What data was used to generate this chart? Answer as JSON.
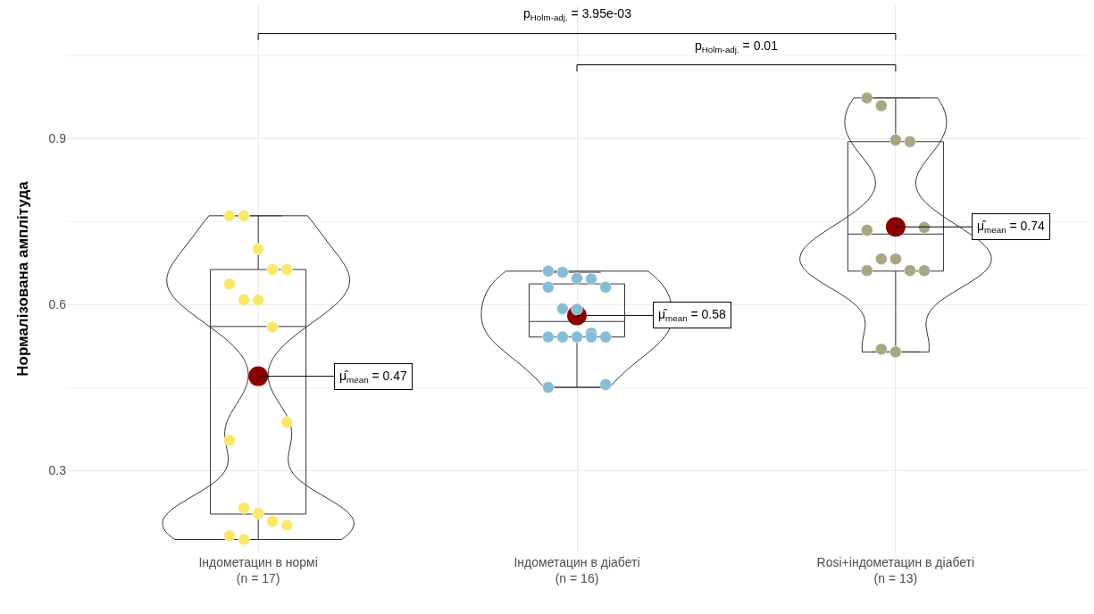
{
  "chart_data": {
    "type": "box",
    "ylabel": "Нормалізована амплітуда",
    "categories": [
      "Індометацин в нормі\n(n = 17)",
      "Індометацин в діабеті\n(n = 16)",
      "Rosi+індометацин в діабеті\n(n = 13)"
    ],
    "boxes": [
      {
        "low": 0.175,
        "q1": 0.221,
        "median": 0.56,
        "q3": 0.663,
        "high": 0.76
      },
      {
        "low": 0.45,
        "q1": 0.541,
        "median": 0.569,
        "q3": 0.637,
        "high": 0.658
      },
      {
        "low": 0.514,
        "q1": 0.66,
        "median": 0.727,
        "q3": 0.894,
        "high": 0.973
      }
    ],
    "series": [
      {
        "type": "scatter",
        "color": "#f9e76a",
        "x": [
          "Індометацин в нормі\n(n = 17)",
          "Індометацин в нормі\n(n = 17)",
          "Індометацин в нормі\n(n = 17)",
          "Індометацин в нормі\n(n = 17)",
          "Індометацин в нормі\n(n = 17)",
          "Індометацин в нормі\n(n = 17)",
          "Індометацин в нормі\n(n = 17)",
          "Індометацин в нормі\n(n = 17)",
          "Індометацин в нормі\n(n = 17)",
          "Індометацин в нормі\n(n = 17)",
          "Індометацин в нормі\n(n = 17)",
          "Індометацин в нормі\n(n = 17)",
          "Індометацин в нормі\n(n = 17)",
          "Індометацин в нормі\n(n = 17)",
          "Індометацин в нормі\n(n = 17)",
          "Індометацин в нормі\n(n = 17)",
          "Індометацин в нормі\n(n = 17)"
        ],
        "values": [
          0.76,
          0.76,
          0.7,
          0.663,
          0.663,
          0.637,
          0.608,
          0.608,
          0.559,
          0.387,
          0.354,
          0.232,
          0.222,
          0.208,
          0.201,
          0.182,
          0.175
        ]
      },
      {
        "type": "scatter",
        "color": "#86bdd4",
        "x": [
          "Індометацин в діабеті\n(n = 16)",
          "Індометацин в діабеті\n(n = 16)",
          "Індометацин в діабеті\n(n = 16)",
          "Індометацин в діабеті\n(n = 16)",
          "Індометацин в діабеті\n(n = 16)",
          "Індометацин в діабеті\n(n = 16)",
          "Індометацин в діабеті\n(n = 16)",
          "Індометацин в діабеті\n(n = 16)",
          "Індометацин в діабеті\n(n = 16)",
          "Індометацин в діабеті\n(n = 16)",
          "Індометацин в діабеті\n(n = 16)",
          "Індометацин в діабеті\n(n = 16)",
          "Індометацин в діабеті\n(n = 16)",
          "Індометацин в діабеті\n(n = 16)",
          "Індометацин в діабеті\n(n = 16)",
          "Індометацин в діабеті\n(n = 16)"
        ],
        "values": [
          0.66,
          0.658,
          0.647,
          0.646,
          0.631,
          0.631,
          0.592,
          0.591,
          0.548,
          0.541,
          0.541,
          0.541,
          0.541,
          0.541,
          0.455,
          0.45
        ]
      },
      {
        "type": "scatter",
        "color": "#a9a683",
        "x": [
          "Rosi+індометацин в діабеті\n(n = 13)",
          "Rosi+індометацин в діабеті\n(n = 13)",
          "Rosi+індометацин в діабеті\n(n = 13)",
          "Rosi+індометацин в діабеті\n(n = 13)",
          "Rosi+індометацин в діабеті\n(n = 13)",
          "Rosi+індометацин в діабеті\n(n = 13)",
          "Rosi+індометацин в діабеті\n(n = 13)",
          "Rosi+індометацин в діабеті\n(n = 13)",
          "Rosi+індометацин в діабеті\n(n = 13)",
          "Rosi+індометацин в діабеті\n(n = 13)",
          "Rosi+індометацин в діабеті\n(n = 13)",
          "Rosi+індометацин в діабеті\n(n = 13)",
          "Rosi+індометацин в діабеті\n(n = 13)"
        ],
        "values": [
          0.973,
          0.959,
          0.897,
          0.894,
          0.739,
          0.734,
          0.682,
          0.682,
          0.661,
          0.661,
          0.661,
          0.519,
          0.514
        ]
      },
      {
        "type": "scatter",
        "color": "#8b0000",
        "x": [
          "Індометацин в нормі\n(n = 17)",
          "Індометацин в діабеті\n(n = 16)",
          "Rosi+індометацин в діабеті\n(n = 13)"
        ],
        "values": [
          0.47,
          0.58,
          0.74
        ]
      }
    ],
    "ylim": [
      0.15,
      1.142
    ],
    "yticks": [
      0.3,
      0.6,
      0.9
    ],
    "grid": true,
    "marker": "circle",
    "annotations": [
      {
        "text": "μ̂$_{mean}$ = 0.47",
        "x": "Індометацин в нормі\n(n = 17)",
        "y": 0.47
      },
      {
        "text": "μ̂$_{mean}$ = 0.58",
        "x": "Індометацин в діабеті\n(n = 16)",
        "y": 0.58
      },
      {
        "text": "μ̂$_{mean}$ = 0.74",
        "x": "Rosi+індометацин в діабеті\n(n = 13)",
        "y": 0.74
      },
      "p$_{Holm-adj.}$ = 3.95e-03",
      "p$_{Holm-adj.}$ = 0.01"
    ]
  }
}
